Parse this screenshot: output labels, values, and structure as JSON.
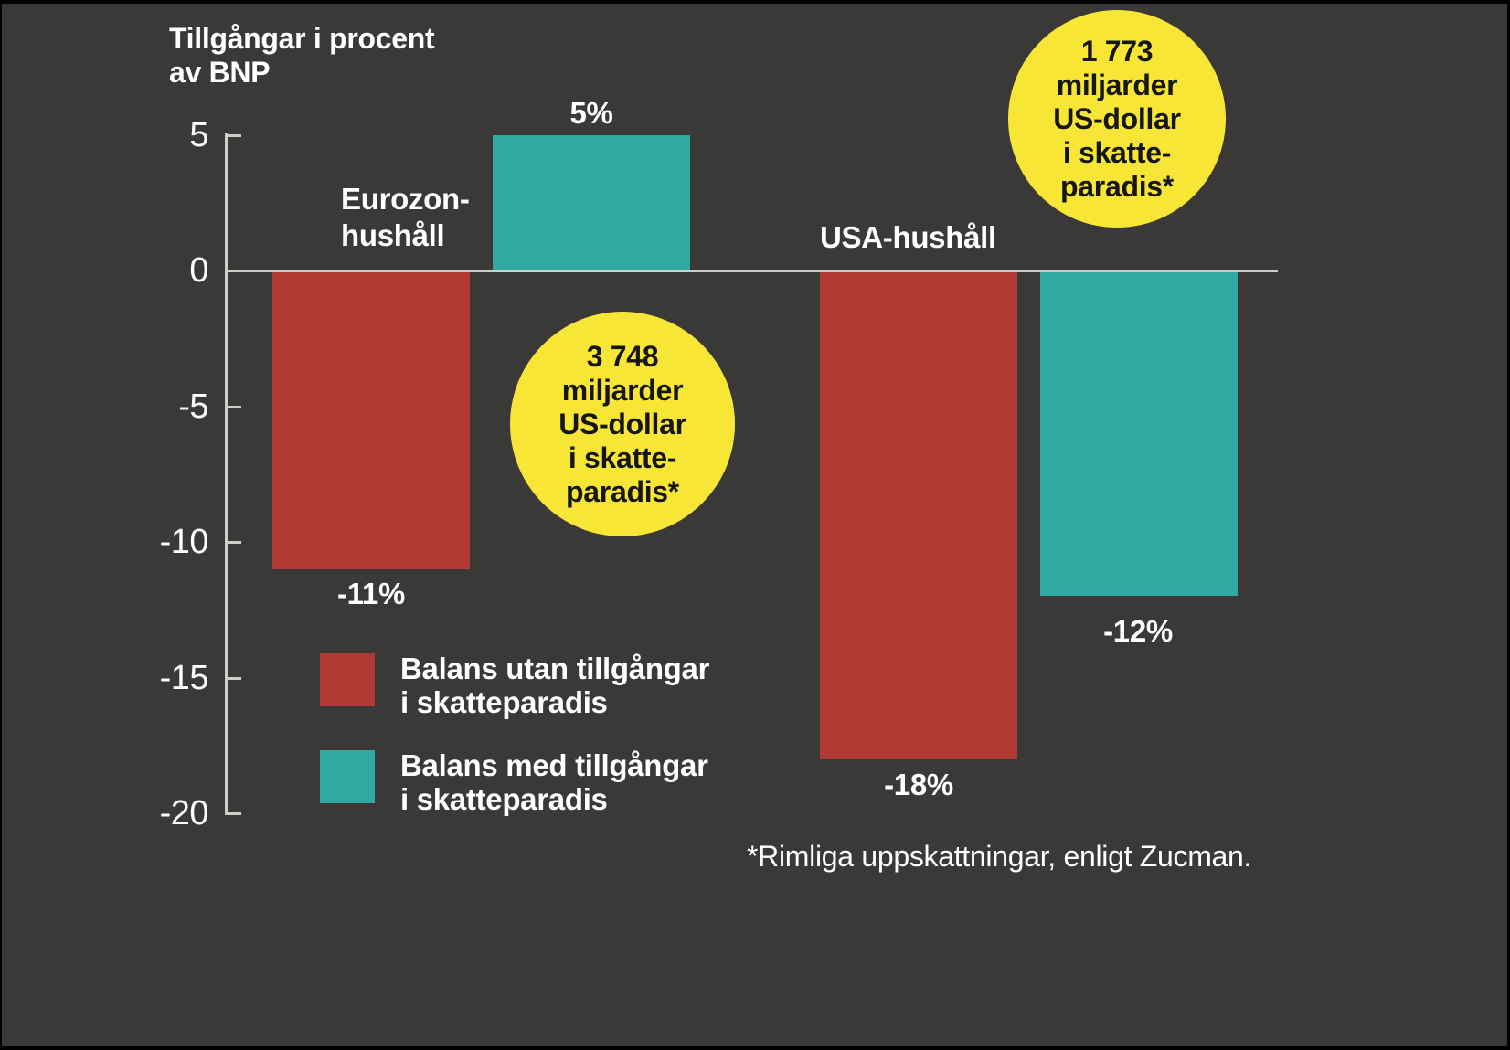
{
  "title": {
    "line1": "Tillgångar i procent",
    "line2": "av BNP"
  },
  "footnote": "*Rimliga uppskattningar, enligt Zucman.",
  "colors": {
    "background": "#3a3938",
    "frame": "#000000",
    "axis": "#cfcecb",
    "red": "#b13a34",
    "teal": "#2fa9a2",
    "yellow": "#f7e636",
    "text_light": "#ffffff",
    "text_dark": "#161616"
  },
  "chart_data": {
    "type": "bar",
    "categories": [
      "Eurozon-hushåll",
      "USA-hushåll"
    ],
    "category_label_lines": [
      [
        "Eurozon-",
        "hushåll"
      ],
      [
        "USA-hushåll"
      ]
    ],
    "series": [
      {
        "name": "Balans utan tillgångar i skatteparadis",
        "legend_lines": [
          "Balans utan tillgångar",
          "i skatteparadis"
        ],
        "color": "#b13a34",
        "values": [
          -11,
          -18
        ],
        "value_labels": [
          "-11%",
          "-18%"
        ]
      },
      {
        "name": "Balans med tillgångar i skatteparadis",
        "legend_lines": [
          "Balans med tillgångar",
          "i skatteparadis"
        ],
        "color": "#2fa9a2",
        "values": [
          5,
          -12
        ],
        "value_labels": [
          "5%",
          "-12%"
        ]
      }
    ],
    "ylabel": "Tillgångar i procent av BNP",
    "ylim": [
      -20,
      5
    ],
    "yticks": [
      5,
      0,
      -5,
      -10,
      -15,
      -20
    ],
    "ytick_labels": [
      "5",
      "0",
      "-5",
      "-10",
      "-15",
      "-20"
    ],
    "grid": false,
    "legend_position": "lower-left",
    "annotations": [
      {
        "target": "Eurozon-hushåll",
        "shape": "circle",
        "color": "#f7e636",
        "lines": [
          "3 748",
          "miljarder",
          "US-dollar",
          "i skatte-",
          "paradis*"
        ]
      },
      {
        "target": "USA-hushåll",
        "shape": "circle",
        "color": "#f7e636",
        "lines": [
          "1 773",
          "miljarder",
          "US-dollar",
          "i skatte-",
          "paradis*"
        ]
      }
    ]
  }
}
